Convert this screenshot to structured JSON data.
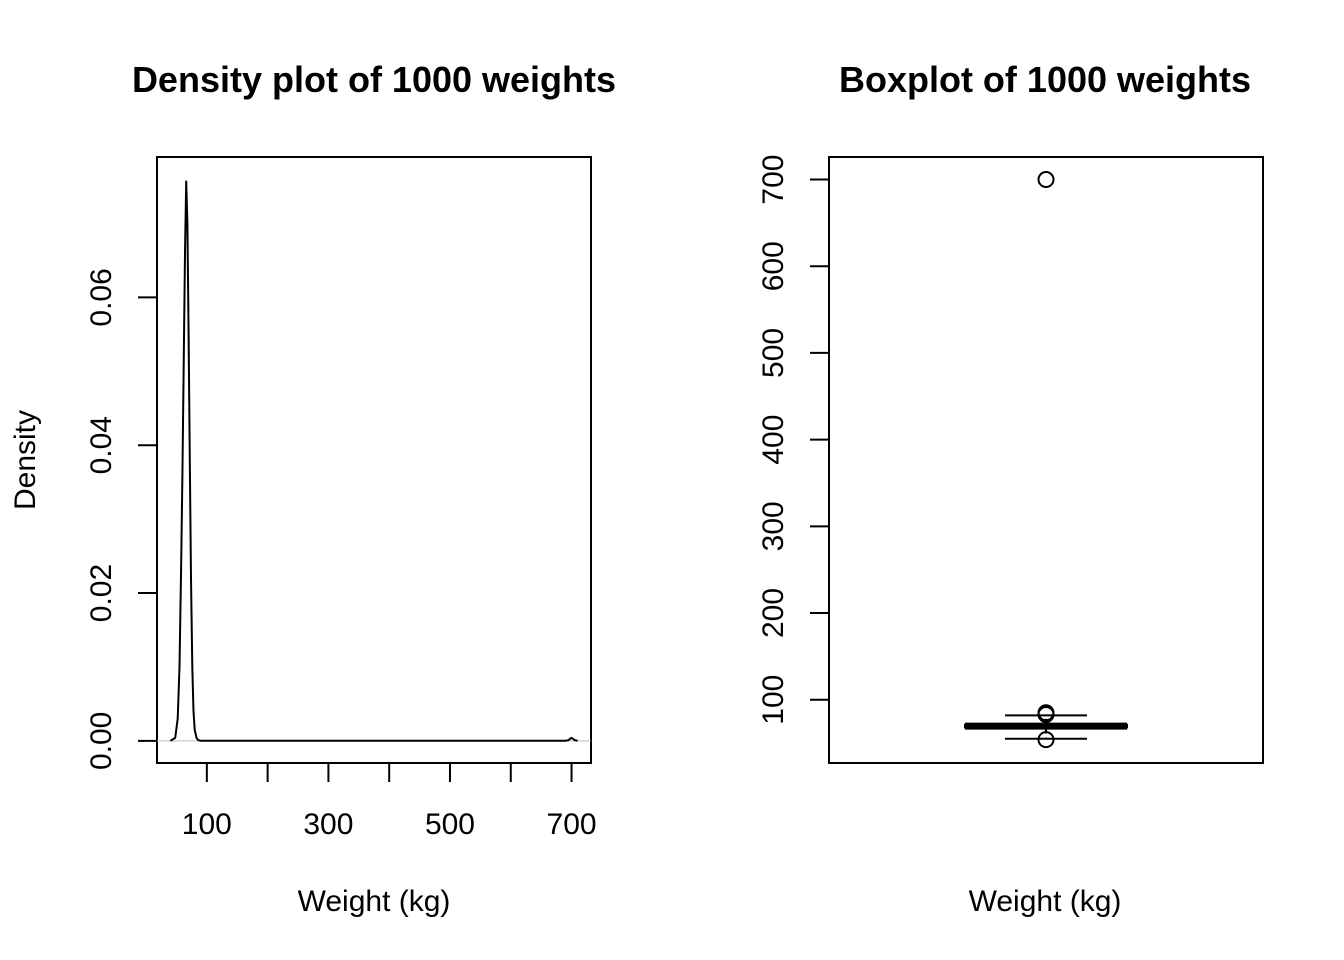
{
  "chart_data": [
    {
      "type": "line",
      "title": "Density plot of 1000 weights",
      "xlabel": "Weight (kg)",
      "ylabel": "Density",
      "xlim": [
        18,
        732
      ],
      "ylim": [
        -0.003,
        0.079
      ],
      "x_ticks": [
        100,
        200,
        300,
        400,
        500,
        600,
        700
      ],
      "x_tick_labels": [
        "100",
        "300",
        "500",
        "700"
      ],
      "y_ticks": [
        0.0,
        0.02,
        0.04,
        0.06
      ],
      "y_tick_labels": [
        "0.00",
        "0.02",
        "0.04",
        "0.06"
      ],
      "grid": false,
      "series": [
        {
          "x": [
            40,
            48,
            52,
            55,
            58,
            60,
            62,
            64,
            66,
            68,
            70,
            72,
            74,
            76,
            78,
            80,
            83,
            86,
            90,
            95,
            100,
            200,
            300,
            400,
            500,
            600,
            690,
            695,
            698,
            700,
            702,
            705,
            710
          ],
          "y": [
            0,
            0.0004,
            0.003,
            0.01,
            0.025,
            0.037,
            0.051,
            0.066,
            0.0757,
            0.07,
            0.055,
            0.038,
            0.022,
            0.01,
            0.004,
            0.0015,
            0.0004,
            0.0001,
            0,
            0,
            0,
            0,
            0,
            0,
            0,
            0,
            0,
            0.0001,
            0.0003,
            0.0004,
            0.0003,
            0.0001,
            0
          ]
        }
      ]
    },
    {
      "type": "box",
      "title": "Boxplot of 1000 weights",
      "xlabel": "Weight (kg)",
      "ylim": [
        27,
        726
      ],
      "y_ticks": [
        100,
        200,
        300,
        400,
        500,
        600,
        700
      ],
      "y_tick_labels": [
        "100",
        "200",
        "300",
        "400",
        "500",
        "600",
        "700"
      ],
      "grid": false,
      "box": {
        "whisker_low": 55,
        "q1": 68,
        "median": 69.5,
        "q3": 71,
        "whisker_high": 82
      },
      "outliers": [
        700,
        85,
        84,
        83,
        54
      ]
    }
  ]
}
